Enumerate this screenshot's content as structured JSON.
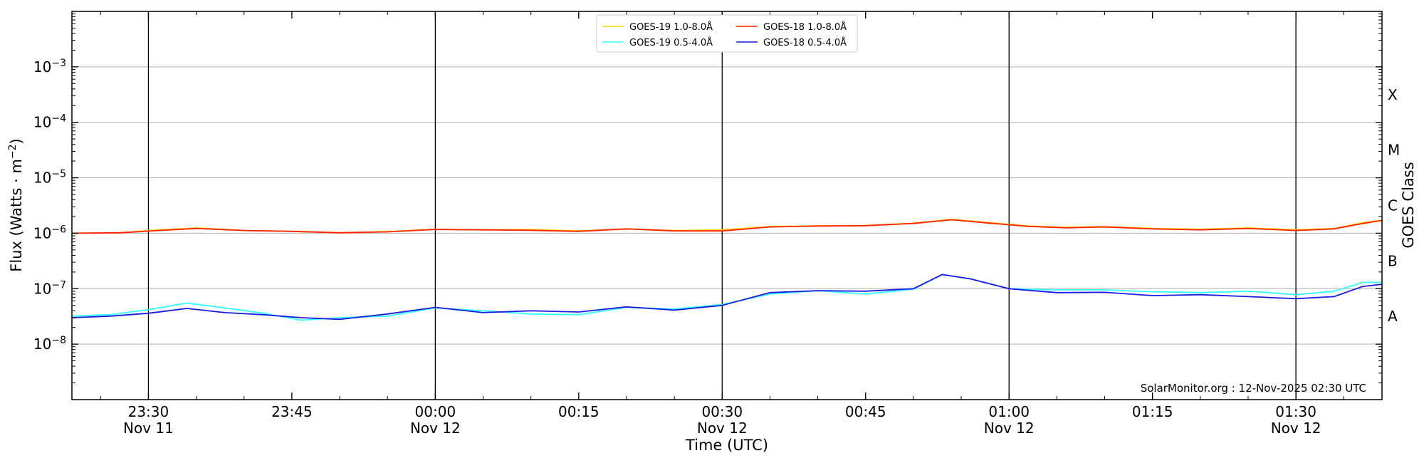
{
  "chart_data": {
    "type": "line",
    "ylabel": "Flux (Watts · m⁻²)",
    "xlabel": "Time (UTC)",
    "right_ylabel": "GOES Class",
    "y_scale": "log",
    "ylim": [
      1e-09,
      0.01
    ],
    "y_ticks": [
      {
        "value": 1e-08,
        "base": "10",
        "exp": "−8"
      },
      {
        "value": 1e-07,
        "base": "10",
        "exp": "−7"
      },
      {
        "value": 1e-06,
        "base": "10",
        "exp": "−6"
      },
      {
        "value": 1e-05,
        "base": "10",
        "exp": "−5"
      },
      {
        "value": 0.0001,
        "base": "10",
        "exp": "−4"
      },
      {
        "value": 0.001,
        "base": "10",
        "exp": "−3"
      }
    ],
    "goes_classes": [
      {
        "label": "A",
        "value": 3.16e-08
      },
      {
        "label": "B",
        "value": 3.16e-07
      },
      {
        "label": "C",
        "value": 3.16e-06
      },
      {
        "label": "M",
        "value": 3.16e-05
      },
      {
        "label": "X",
        "value": 0.000316
      }
    ],
    "xlim": [
      "2025-11-11 23:22",
      "2025-11-12 01:39"
    ],
    "x_ticks": [
      {
        "time": "2025-11-11 23:30",
        "line1": "23:30",
        "line2": "Nov 11",
        "major": true
      },
      {
        "time": "2025-11-11 23:45",
        "line1": "23:45",
        "line2": "",
        "major": false
      },
      {
        "time": "2025-11-12 00:00",
        "line1": "00:00",
        "line2": "Nov 12",
        "major": true
      },
      {
        "time": "2025-11-12 00:15",
        "line1": "00:15",
        "line2": "",
        "major": false
      },
      {
        "time": "2025-11-12 00:30",
        "line1": "00:30",
        "line2": "Nov 12",
        "major": true
      },
      {
        "time": "2025-11-12 00:45",
        "line1": "00:45",
        "line2": "",
        "major": false
      },
      {
        "time": "2025-11-12 01:00",
        "line1": "01:00",
        "line2": "Nov 12",
        "major": true
      },
      {
        "time": "2025-11-12 01:15",
        "line1": "01:15",
        "line2": "",
        "major": false
      },
      {
        "time": "2025-11-12 01:30",
        "line1": "01:30",
        "line2": "Nov 12",
        "major": true
      }
    ],
    "legend_position": "top-center",
    "legend": [
      {
        "label": "GOES-19 1.0-8.0Å",
        "color": "#ffd700"
      },
      {
        "label": "GOES-19 0.5-4.0Å",
        "color": "#33ffff"
      },
      {
        "label": "GOES-18 1.0-8.0Å",
        "color": "#ff2200"
      },
      {
        "label": "GOES-18 0.5-4.0Å",
        "color": "#1a1ae6"
      }
    ],
    "credit": "SolarMonitor.org : 12-Nov-2025 02:30 UTC",
    "series": [
      {
        "name": "GOES-19 1.0-8.0Å",
        "color": "#ffd700",
        "x": [
          "2025-11-11 23:22",
          "2025-11-11 23:27",
          "2025-11-11 23:31",
          "2025-11-11 23:35",
          "2025-11-11 23:40",
          "2025-11-11 23:45",
          "2025-11-11 23:50",
          "2025-11-11 23:55",
          "2025-11-12 00:00",
          "2025-11-12 00:05",
          "2025-11-12 00:10",
          "2025-11-12 00:15",
          "2025-11-12 00:20",
          "2025-11-12 00:25",
          "2025-11-12 00:30",
          "2025-11-12 00:35",
          "2025-11-12 00:40",
          "2025-11-12 00:45",
          "2025-11-12 00:50",
          "2025-11-12 00:54",
          "2025-11-12 00:58",
          "2025-11-12 01:02",
          "2025-11-12 01:06",
          "2025-11-12 01:10",
          "2025-11-12 01:15",
          "2025-11-12 01:20",
          "2025-11-12 01:25",
          "2025-11-12 01:30",
          "2025-11-12 01:34",
          "2025-11-12 01:37",
          "2025-11-12 01:39"
        ],
        "y": [
          1e-06,
          1.02e-06,
          1.15e-06,
          1.25e-06,
          1.12e-06,
          1.08e-06,
          1.02e-06,
          1.07e-06,
          1.18e-06,
          1.15e-06,
          1.17e-06,
          1.1e-06,
          1.2e-06,
          1.12e-06,
          1.15e-06,
          1.32e-06,
          1.36e-06,
          1.38e-06,
          1.52e-06,
          1.78e-06,
          1.55e-06,
          1.35e-06,
          1.28e-06,
          1.32e-06,
          1.22e-06,
          1.18e-06,
          1.25e-06,
          1.15e-06,
          1.22e-06,
          1.55e-06,
          1.72e-06
        ]
      },
      {
        "name": "GOES-18 1.0-8.0Å",
        "color": "#ff2200",
        "x": [
          "2025-11-11 23:22",
          "2025-11-11 23:27",
          "2025-11-11 23:31",
          "2025-11-11 23:35",
          "2025-11-11 23:40",
          "2025-11-11 23:45",
          "2025-11-11 23:50",
          "2025-11-11 23:55",
          "2025-11-12 00:00",
          "2025-11-12 00:05",
          "2025-11-12 00:10",
          "2025-11-12 00:15",
          "2025-11-12 00:20",
          "2025-11-12 00:25",
          "2025-11-12 00:30",
          "2025-11-12 00:35",
          "2025-11-12 00:40",
          "2025-11-12 00:45",
          "2025-11-12 00:50",
          "2025-11-12 00:54",
          "2025-11-12 00:58",
          "2025-11-12 01:02",
          "2025-11-12 01:06",
          "2025-11-12 01:10",
          "2025-11-12 01:15",
          "2025-11-12 01:20",
          "2025-11-12 01:25",
          "2025-11-12 01:30",
          "2025-11-12 01:34",
          "2025-11-12 01:37",
          "2025-11-12 01:39"
        ],
        "y": [
          1e-06,
          1.02e-06,
          1.12e-06,
          1.22e-06,
          1.12e-06,
          1.08e-06,
          1.02e-06,
          1.06e-06,
          1.17e-06,
          1.15e-06,
          1.13e-06,
          1.08e-06,
          1.2e-06,
          1.1e-06,
          1.1e-06,
          1.3e-06,
          1.35e-06,
          1.37e-06,
          1.5e-06,
          1.75e-06,
          1.52e-06,
          1.33e-06,
          1.25e-06,
          1.3e-06,
          1.2e-06,
          1.15e-06,
          1.22e-06,
          1.12e-06,
          1.2e-06,
          1.5e-06,
          1.7e-06
        ]
      },
      {
        "name": "GOES-19 0.5-4.0Å",
        "color": "#33ffff",
        "x": [
          "2025-11-11 23:22",
          "2025-11-11 23:26",
          "2025-11-11 23:30",
          "2025-11-11 23:34",
          "2025-11-11 23:38",
          "2025-11-11 23:42",
          "2025-11-11 23:46",
          "2025-11-11 23:50",
          "2025-11-11 23:55",
          "2025-11-12 00:00",
          "2025-11-12 00:05",
          "2025-11-12 00:10",
          "2025-11-12 00:15",
          "2025-11-12 00:20",
          "2025-11-12 00:25",
          "2025-11-12 00:30",
          "2025-11-12 00:35",
          "2025-11-12 00:40",
          "2025-11-12 00:45",
          "2025-11-12 00:50",
          "2025-11-12 00:53",
          "2025-11-12 00:56",
          "2025-11-12 01:00",
          "2025-11-12 01:05",
          "2025-11-12 01:10",
          "2025-11-12 01:15",
          "2025-11-12 01:20",
          "2025-11-12 01:25",
          "2025-11-12 01:30",
          "2025-11-12 01:34",
          "2025-11-12 01:37",
          "2025-11-12 01:39"
        ],
        "y": [
          3.2e-08,
          3.4e-08,
          4.2e-08,
          5.5e-08,
          4.5e-08,
          3.6e-08,
          2.7e-08,
          3e-08,
          3.2e-08,
          4.5e-08,
          4e-08,
          3.5e-08,
          3.4e-08,
          4.6e-08,
          4.3e-08,
          5.2e-08,
          8e-08,
          9.2e-08,
          8e-08,
          9.8e-08,
          1.8e-07,
          1.5e-07,
          1e-07,
          9.5e-08,
          9.5e-08,
          8.8e-08,
          8.5e-08,
          9e-08,
          7.8e-08,
          9e-08,
          1.3e-07,
          1.3e-07
        ]
      },
      {
        "name": "GOES-18 0.5-4.0Å",
        "color": "#1a1ae6",
        "x": [
          "2025-11-11 23:22",
          "2025-11-11 23:26",
          "2025-11-11 23:30",
          "2025-11-11 23:34",
          "2025-11-11 23:38",
          "2025-11-11 23:42",
          "2025-11-11 23:46",
          "2025-11-11 23:50",
          "2025-11-11 23:55",
          "2025-11-12 00:00",
          "2025-11-12 00:05",
          "2025-11-12 00:10",
          "2025-11-12 00:15",
          "2025-11-12 00:20",
          "2025-11-12 00:25",
          "2025-11-12 00:30",
          "2025-11-12 00:35",
          "2025-11-12 00:40",
          "2025-11-12 00:45",
          "2025-11-12 00:50",
          "2025-11-12 00:53",
          "2025-11-12 00:56",
          "2025-11-12 01:00",
          "2025-11-12 01:05",
          "2025-11-12 01:10",
          "2025-11-12 01:15",
          "2025-11-12 01:20",
          "2025-11-12 01:25",
          "2025-11-12 01:30",
          "2025-11-12 01:34",
          "2025-11-12 01:37",
          "2025-11-12 01:39"
        ],
        "y": [
          3e-08,
          3.2e-08,
          3.6e-08,
          4.4e-08,
          3.7e-08,
          3.4e-08,
          3e-08,
          2.8e-08,
          3.5e-08,
          4.6e-08,
          3.7e-08,
          4e-08,
          3.8e-08,
          4.7e-08,
          4.1e-08,
          5e-08,
          8.5e-08,
          9.2e-08,
          9e-08,
          1e-07,
          1.8e-07,
          1.5e-07,
          1e-07,
          8.5e-08,
          8.6e-08,
          7.5e-08,
          7.8e-08,
          7.2e-08,
          6.6e-08,
          7.2e-08,
          1.1e-07,
          1.2e-07
        ]
      }
    ]
  }
}
